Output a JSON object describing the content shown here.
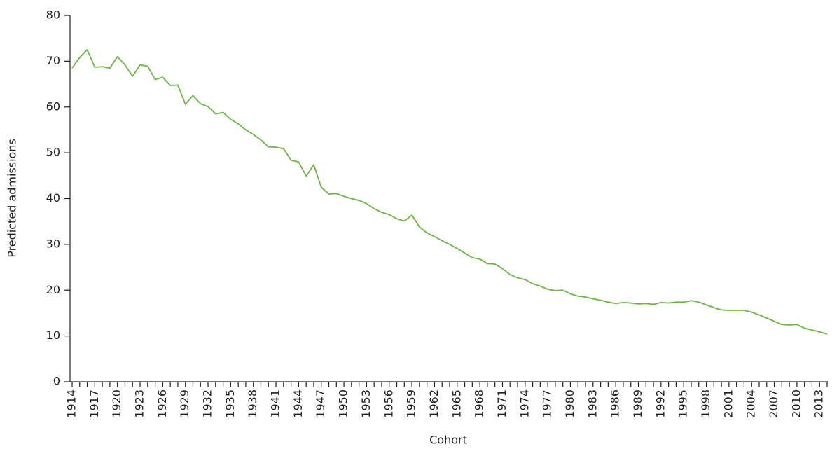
{
  "chart_data": {
    "type": "line",
    "x_label": "Cohort",
    "y_label": "Predicted admissions",
    "categories": [
      "1914",
      null,
      null,
      "1917",
      null,
      null,
      "1920",
      null,
      null,
      "1923",
      null,
      null,
      "1926",
      null,
      null,
      "1929",
      null,
      null,
      "1932",
      null,
      null,
      "1935",
      null,
      null,
      "1938",
      null,
      null,
      "1941",
      null,
      null,
      "1944",
      null,
      null,
      "1947",
      null,
      null,
      "1950",
      null,
      null,
      "1953",
      null,
      null,
      "1956",
      null,
      null,
      "1959",
      null,
      null,
      "1962",
      null,
      null,
      "1965",
      null,
      null,
      "1968",
      null,
      null,
      "1971",
      null,
      null,
      "1974",
      null,
      null,
      "1977",
      null,
      null,
      "1980",
      null,
      null,
      "1983",
      null,
      null,
      "1986",
      null,
      null,
      "1989",
      null,
      null,
      "1992",
      null,
      null,
      "1995",
      null,
      null,
      "1998",
      null,
      null,
      "2001",
      null,
      null,
      "2004",
      null,
      null,
      "2007",
      null,
      null,
      "2010",
      null,
      null,
      "2013",
      null
    ],
    "series": [
      {
        "color": "#6cb544",
        "values": [
          68.5,
          70.8,
          72.5,
          68.7,
          68.8,
          68.5,
          71,
          69.2,
          66.7,
          69.2,
          68.9,
          66,
          66.5,
          64.7,
          64.8,
          60.6,
          62.5,
          60.7,
          60.1,
          58.5,
          58.8,
          57.3,
          56.3,
          55,
          54,
          52.8,
          51.3,
          51.2,
          50.9,
          48.4,
          48,
          44.9,
          47.4,
          42.5,
          41,
          41.1,
          40.5,
          40,
          39.6,
          38.9,
          37.8,
          37,
          36.5,
          35.6,
          35.1,
          36.4,
          33.8,
          32.5,
          31.7,
          30.8,
          30,
          29.1,
          28.1,
          27.1,
          26.8,
          25.8,
          25.7,
          24.7,
          23.4,
          22.7,
          22.3,
          21.4,
          20.9,
          20.2,
          19.9,
          20,
          19.2,
          18.7,
          18.5,
          18.1,
          17.8,
          17.4,
          17.1,
          17.3,
          17.2,
          17,
          17.1,
          16.9,
          17.3,
          17.2,
          17.4,
          17.4,
          17.7,
          17.4,
          16.8,
          16.2,
          15.7,
          15.6,
          15.6,
          15.6,
          15.2,
          14.6,
          13.9,
          13.2,
          12.5,
          12.4,
          12.5,
          11.7,
          11.3,
          10.9,
          10.4
        ]
      }
    ],
    "ylim": [
      0,
      80
    ],
    "yticks": [
      0,
      10,
      20,
      30,
      40,
      50,
      60,
      70,
      80
    ]
  }
}
